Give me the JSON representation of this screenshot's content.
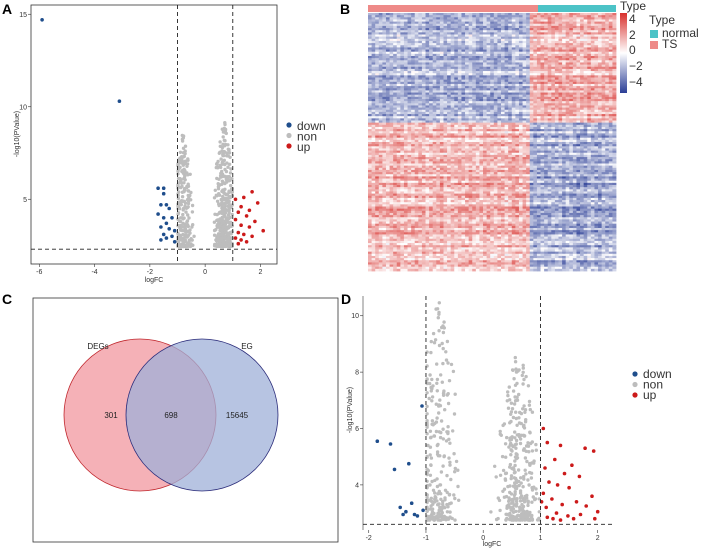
{
  "panels": {
    "a": "A",
    "b": "B",
    "c": "C",
    "d": "D"
  },
  "colors": {
    "down": "#1f4e8c",
    "non": "#bdbdbd",
    "up": "#cc1a1a",
    "normal": "#4cc3c7",
    "ts": "#ee8a88",
    "heat_high": "#d7302c",
    "heat_mid": "#ffffff",
    "heat_low": "#2b3e96",
    "venn_left": "#f3a3aa",
    "venn_left_border": "#c0272d",
    "venn_right": "#9fb0d8",
    "venn_right_border": "#2b2c7a"
  },
  "chart_data": [
    {
      "id": "A",
      "type": "scatter",
      "title": "",
      "xlabel": "logFC",
      "ylabel": "-log10(PValue)",
      "xlim": [
        -6.3,
        2.6
      ],
      "ylim": [
        1.5,
        15.5
      ],
      "xticks": [
        -6,
        -4,
        -2,
        0,
        2
      ],
      "xtick_labels": [
        "-6",
        "-4",
        "-2",
        "0",
        "2"
      ],
      "yticks": [
        5,
        10,
        15
      ],
      "ytick_labels": [
        "5",
        "10",
        "15"
      ],
      "vlines": [
        -1,
        1
      ],
      "hline": 2.3,
      "legend": [
        "down",
        "non",
        "up"
      ],
      "points": {
        "down": [
          [
            -5.9,
            14.7
          ],
          [
            -3.1,
            10.3
          ],
          [
            -1.7,
            5.6
          ],
          [
            -1.5,
            5.6
          ],
          [
            -1.5,
            5.3
          ],
          [
            -1.6,
            4.7
          ],
          [
            -1.4,
            4.7
          ],
          [
            -1.3,
            4.5
          ],
          [
            -1.7,
            4.2
          ],
          [
            -1.5,
            4.0
          ],
          [
            -1.2,
            4.0
          ],
          [
            -1.4,
            3.7
          ],
          [
            -1.6,
            3.5
          ],
          [
            -1.3,
            3.4
          ],
          [
            -1.1,
            3.3
          ],
          [
            -1.5,
            3.1
          ],
          [
            -1.2,
            3.0
          ],
          [
            -1.4,
            2.9
          ],
          [
            -1.6,
            2.8
          ],
          [
            -1.1,
            2.7
          ]
        ],
        "up": [
          [
            1.7,
            5.4
          ],
          [
            1.4,
            5.1
          ],
          [
            1.1,
            5.0
          ],
          [
            1.9,
            4.8
          ],
          [
            1.3,
            4.6
          ],
          [
            1.6,
            4.4
          ],
          [
            1.2,
            4.3
          ],
          [
            1.5,
            4.1
          ],
          [
            1.1,
            3.9
          ],
          [
            1.8,
            3.8
          ],
          [
            1.3,
            3.6
          ],
          [
            1.6,
            3.5
          ],
          [
            2.1,
            3.3
          ],
          [
            1.2,
            3.2
          ],
          [
            1.4,
            3.1
          ],
          [
            1.7,
            3.0
          ],
          [
            1.1,
            2.9
          ],
          [
            1.3,
            2.8
          ],
          [
            1.5,
            2.7
          ],
          [
            1.2,
            2.6
          ]
        ],
        "non_count": 650,
        "non_peak_a": [
          -0.8,
          8.6
        ],
        "non_peak_b": [
          0.7,
          9.4
        ]
      }
    },
    {
      "id": "B",
      "type": "heatmap",
      "legend_title": "Type",
      "legend_entries": [
        "normal",
        "TS"
      ],
      "colorbar_ticks": [
        4,
        2,
        0,
        -2,
        -4
      ],
      "colorbar_tick_labels": [
        "4",
        "2",
        "0",
        "−2",
        "−4"
      ],
      "n_ts_columns": 45,
      "n_normal_columns": 24,
      "n_rows": 120
    },
    {
      "id": "C",
      "type": "table",
      "sets": [
        {
          "label": "DEGs",
          "only": 301
        },
        {
          "label": "EG",
          "only": 15645
        }
      ],
      "intersection": 698
    },
    {
      "id": "D",
      "type": "scatter",
      "title": "",
      "xlabel": "logFC",
      "ylabel": "-log10(PValue)",
      "xlim": [
        -2.1,
        2.25
      ],
      "ylim": [
        2.4,
        10.7
      ],
      "xticks": [
        -2,
        -1,
        0,
        1,
        2
      ],
      "xtick_labels": [
        "-2",
        "-1",
        "0",
        "1",
        "2"
      ],
      "yticks": [
        4,
        6,
        8,
        10
      ],
      "ytick_labels": [
        "4",
        "6",
        "8",
        "10"
      ],
      "vlines": [
        -1,
        1
      ],
      "hline": 2.6,
      "legend": [
        "down",
        "non",
        "up"
      ],
      "points": {
        "down": [
          [
            -1.85,
            5.55
          ],
          [
            -1.62,
            5.45
          ],
          [
            -1.55,
            4.55
          ],
          [
            -1.3,
            4.75
          ],
          [
            -1.07,
            6.8
          ],
          [
            -1.45,
            3.2
          ],
          [
            -1.35,
            3.05
          ],
          [
            -1.25,
            3.35
          ],
          [
            -1.2,
            2.95
          ],
          [
            -1.15,
            2.9
          ],
          [
            -1.4,
            2.95
          ],
          [
            -1.05,
            3.1
          ]
        ],
        "up": [
          [
            1.05,
            6.0
          ],
          [
            1.12,
            5.5
          ],
          [
            1.35,
            5.4
          ],
          [
            1.78,
            5.3
          ],
          [
            1.93,
            5.2
          ],
          [
            1.25,
            4.9
          ],
          [
            1.55,
            4.7
          ],
          [
            1.08,
            4.6
          ],
          [
            1.42,
            4.4
          ],
          [
            1.68,
            4.3
          ],
          [
            1.15,
            4.1
          ],
          [
            1.3,
            4.0
          ],
          [
            1.5,
            3.9
          ],
          [
            1.05,
            3.7
          ],
          [
            1.9,
            3.6
          ],
          [
            1.2,
            3.5
          ],
          [
            1.63,
            3.4
          ],
          [
            1.38,
            3.3
          ],
          [
            1.1,
            3.2
          ],
          [
            1.8,
            3.25
          ],
          [
            1.28,
            3.0
          ],
          [
            1.48,
            2.9
          ],
          [
            1.12,
            2.85
          ],
          [
            1.7,
            2.95
          ],
          [
            2.0,
            3.05
          ],
          [
            1.22,
            2.8
          ],
          [
            1.58,
            2.8
          ],
          [
            1.02,
            3.4
          ],
          [
            1.35,
            2.75
          ],
          [
            1.95,
            2.8
          ]
        ],
        "non_count": 600,
        "non_peak_a": [
          -0.78,
          10.5
        ],
        "non_peak_b": [
          0.62,
          8.9
        ]
      }
    }
  ]
}
